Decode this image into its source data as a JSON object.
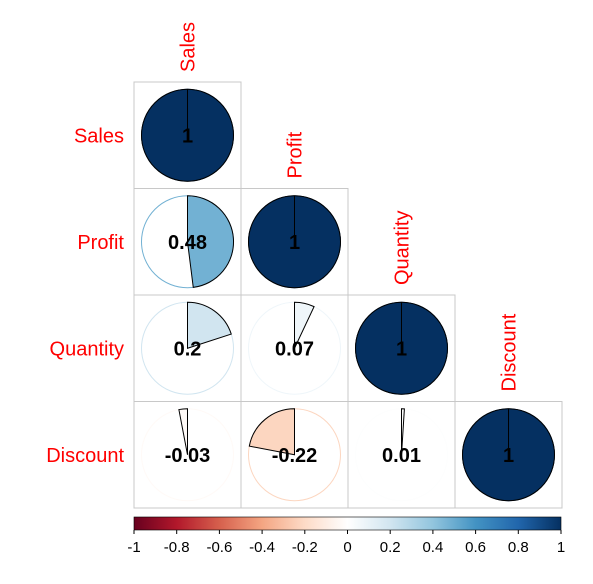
{
  "chart_data": {
    "type": "heatmap",
    "style": "correlation-pie-lower-triangle",
    "variables": [
      "Sales",
      "Profit",
      "Quantity",
      "Discount"
    ],
    "matrix": [
      [
        1,
        0.48,
        0.2,
        -0.03
      ],
      [
        0.48,
        1,
        0.07,
        -0.22
      ],
      [
        0.2,
        0.07,
        1,
        0.01
      ],
      [
        -0.03,
        -0.22,
        0.01,
        1
      ]
    ],
    "cells": [
      {
        "row": "Sales",
        "col": "Sales",
        "value": 1,
        "label": "1"
      },
      {
        "row": "Profit",
        "col": "Sales",
        "value": 0.48,
        "label": "0.48"
      },
      {
        "row": "Profit",
        "col": "Profit",
        "value": 1,
        "label": "1"
      },
      {
        "row": "Quantity",
        "col": "Sales",
        "value": 0.2,
        "label": "0.2"
      },
      {
        "row": "Quantity",
        "col": "Profit",
        "value": 0.07,
        "label": "0.07"
      },
      {
        "row": "Quantity",
        "col": "Quantity",
        "value": 1,
        "label": "1"
      },
      {
        "row": "Discount",
        "col": "Sales",
        "value": -0.03,
        "label": "-0.03"
      },
      {
        "row": "Discount",
        "col": "Profit",
        "value": -0.22,
        "label": "-0.22"
      },
      {
        "row": "Discount",
        "col": "Quantity",
        "value": 0.01,
        "label": "0.01"
      },
      {
        "row": "Discount",
        "col": "Discount",
        "value": 1,
        "label": "1"
      }
    ],
    "colorbar": {
      "range": [
        -1,
        1
      ],
      "ticks": [
        "-1",
        "-0.8",
        "-0.6",
        "-0.4",
        "-0.2",
        "0",
        "0.2",
        "0.4",
        "0.6",
        "0.8",
        "1"
      ],
      "colors": [
        "#67001f",
        "#b2182b",
        "#d6604d",
        "#f4a582",
        "#fddbc7",
        "#ffffff",
        "#d1e5f0",
        "#92c5de",
        "#4393c3",
        "#2166ac",
        "#053061"
      ],
      "placement": "bottom"
    },
    "label_color": "#ff0000",
    "grid": true
  }
}
